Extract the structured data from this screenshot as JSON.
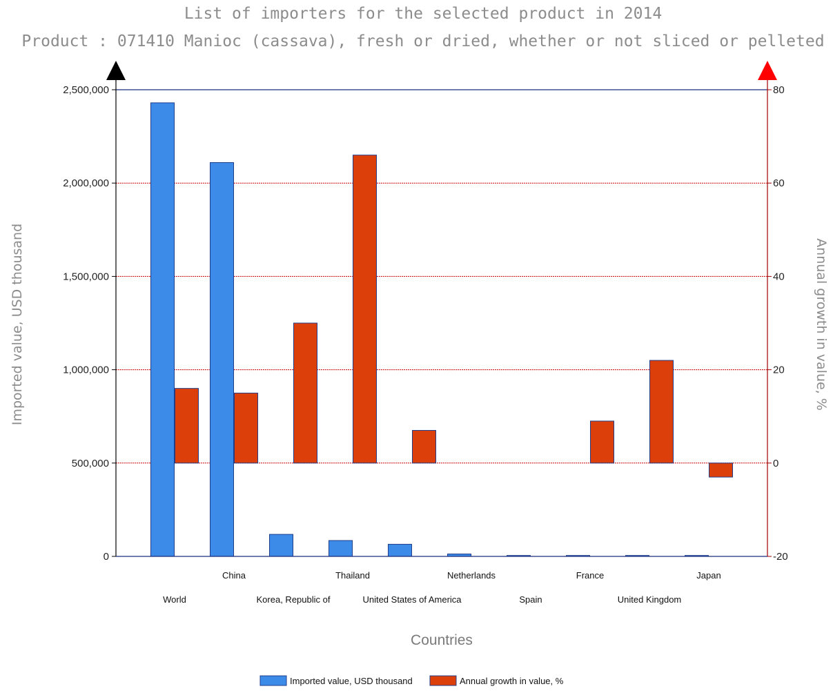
{
  "chart_data": {
    "type": "bar",
    "title": "List of importers for the selected product in 2014",
    "subtitle": "Product : 071410 Manioc (cassava), fresh or dried, whether or not sliced or pelleted",
    "xlabel": "Countries",
    "ylabel_left": "Imported value, USD thousand",
    "ylabel_right": "Annual growth in value, %",
    "categories": [
      "World",
      "China",
      "Korea, Republic of",
      "Thailand",
      "United States of America",
      "Netherlands",
      "Spain",
      "France",
      "United Kingdom",
      "Japan"
    ],
    "series": [
      {
        "name": "Imported value, USD thousand",
        "axis": "left",
        "color": "#3d8be8",
        "values": [
          2430000,
          2110000,
          118000,
          85000,
          65000,
          13000,
          5000,
          5000,
          5000,
          5000
        ]
      },
      {
        "name": "Annual growth in value, %",
        "axis": "right",
        "color": "#dd3f0b",
        "values": [
          16,
          15,
          30,
          66,
          7,
          0,
          0,
          9,
          22,
          -3
        ]
      }
    ],
    "ylim_left": [
      0,
      2500000
    ],
    "ylim_right": [
      -20,
      80
    ],
    "yticks_left": [
      0,
      500000,
      1000000,
      1500000,
      2000000,
      2500000
    ],
    "ytick_labels_left": [
      "0",
      "500,000",
      "1,000,000",
      "1,500,000",
      "2,000,000",
      "2,500,000"
    ],
    "yticks_right": [
      -20,
      0,
      20,
      40,
      60,
      80
    ],
    "ytick_labels_right": [
      "-20",
      "0",
      "20",
      "40",
      "60",
      "80"
    ],
    "grid": true,
    "grid_color": "#cc0000",
    "left_axis_color": "#000000",
    "right_axis_color": "#a00000",
    "left_arrow_color": "#000000",
    "right_arrow_color": "#ff0000",
    "legend_position": "bottom"
  }
}
